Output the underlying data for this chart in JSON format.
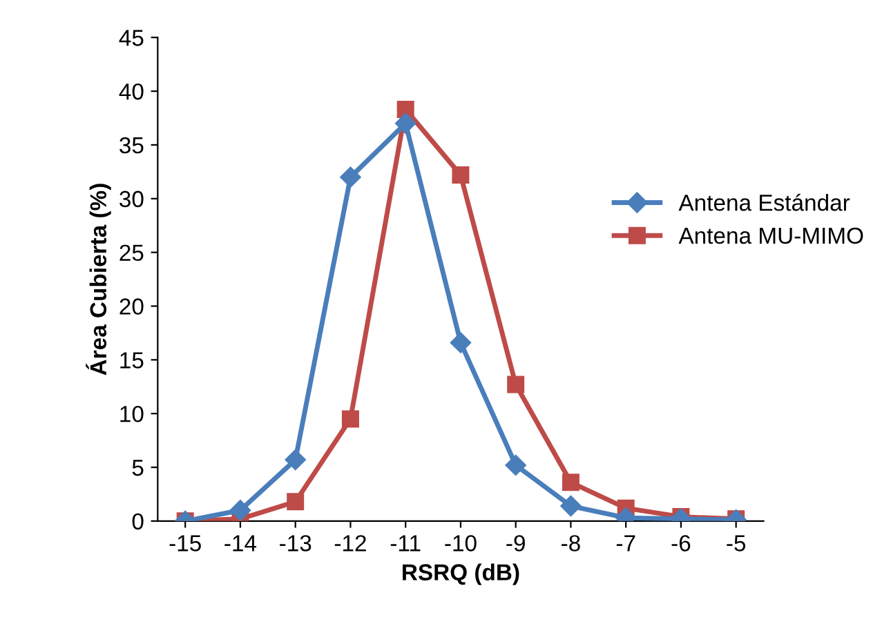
{
  "chart_data": {
    "type": "line",
    "xlabel": "RSRQ (dB)",
    "ylabel": "Área Cubierta (%)",
    "x": [
      -15,
      -14,
      -13,
      -12,
      -11,
      -10,
      -9,
      -8,
      -7,
      -6,
      -5
    ],
    "series": [
      {
        "name": "Antena Estándar",
        "color": "#4a7ebb",
        "marker": "diamond",
        "values": [
          0,
          1.0,
          5.7,
          32.0,
          37.0,
          16.6,
          5.2,
          1.4,
          0.3,
          0.2,
          0.1
        ]
      },
      {
        "name": "Antena MU-MIMO",
        "color": "#be4b48",
        "marker": "square",
        "values": [
          0,
          0.2,
          1.8,
          9.5,
          38.3,
          32.2,
          12.7,
          3.6,
          1.2,
          0.4,
          0.2
        ]
      }
    ],
    "xlim": [
      -15.5,
      -4.5
    ],
    "xticks": [
      -15,
      -14,
      -13,
      -12,
      -11,
      -10,
      -9,
      -8,
      -7,
      -6,
      -5
    ],
    "ylim": [
      0,
      45
    ],
    "yticks": [
      0,
      5,
      10,
      15,
      20,
      25,
      30,
      35,
      40,
      45
    ],
    "grid": false,
    "legend": "right",
    "line_style": "solid"
  }
}
